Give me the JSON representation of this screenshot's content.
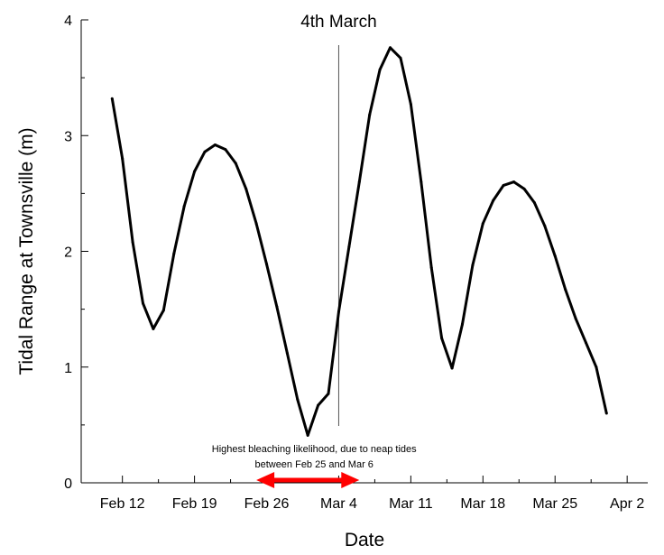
{
  "chart_data": {
    "type": "line",
    "title": "",
    "xlabel": "Date",
    "ylabel": "Tidal Range at Townsville (m)",
    "x_tick_labels": [
      "Feb 12",
      "Feb 19",
      "Feb 26",
      "Mar 4",
      "Mar 11",
      "Mar 18",
      "Mar 25",
      "Apr 2"
    ],
    "y_tick_labels": [
      "0",
      "1",
      "2",
      "3",
      "4"
    ],
    "xlim": [
      "2016-02-08",
      "2016-04-03"
    ],
    "ylim": [
      0,
      4
    ],
    "grid": false,
    "series": [
      {
        "color": "#000000",
        "x": [
          "2016-02-11",
          "2016-02-12",
          "2016-02-13",
          "2016-02-14",
          "2016-02-15",
          "2016-02-16",
          "2016-02-17",
          "2016-02-18",
          "2016-02-19",
          "2016-02-20",
          "2016-02-21",
          "2016-02-22",
          "2016-02-23",
          "2016-02-24",
          "2016-02-25",
          "2016-02-26",
          "2016-02-27",
          "2016-02-28",
          "2016-02-29",
          "2016-03-01",
          "2016-03-02",
          "2016-03-03",
          "2016-03-04",
          "2016-03-05",
          "2016-03-06",
          "2016-03-07",
          "2016-03-08",
          "2016-03-09",
          "2016-03-10",
          "2016-03-11",
          "2016-03-12",
          "2016-03-13",
          "2016-03-14",
          "2016-03-15",
          "2016-03-16",
          "2016-03-17",
          "2016-03-18",
          "2016-03-19",
          "2016-03-20",
          "2016-03-21",
          "2016-03-22",
          "2016-03-23",
          "2016-03-24",
          "2016-03-25",
          "2016-03-26",
          "2016-03-27",
          "2016-03-28",
          "2016-03-29",
          "2016-03-30"
        ],
        "y": [
          3.32,
          2.8,
          2.08,
          1.55,
          1.33,
          1.49,
          1.98,
          2.39,
          2.69,
          2.86,
          2.92,
          2.88,
          2.76,
          2.54,
          2.24,
          1.89,
          1.52,
          1.12,
          0.72,
          0.41,
          0.67,
          0.77,
          1.48,
          2.04,
          2.6,
          3.18,
          3.57,
          3.76,
          3.67,
          3.27,
          2.6,
          1.86,
          1.25,
          0.99,
          1.37,
          1.88,
          2.24,
          2.44,
          2.57,
          2.6,
          2.54,
          2.42,
          2.22,
          1.96,
          1.67,
          1.42,
          1.21,
          1.0,
          0.6
        ]
      }
    ],
    "annotations": {
      "marker_date": "2016-03-04",
      "marker_label": "4th March",
      "bleaching_note_line1": "Highest bleaching likelihood, due to neap tides",
      "bleaching_note_line2": "between Feb 25 and Mar 6",
      "bleaching_range": [
        "2016-02-25",
        "2016-03-06"
      ],
      "arrow_color": "#ff0000"
    }
  }
}
